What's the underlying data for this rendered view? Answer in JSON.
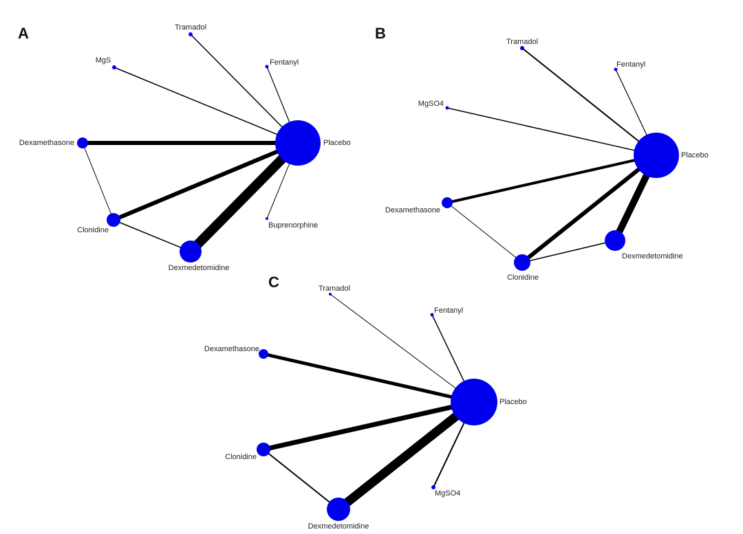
{
  "panels": [
    {
      "label": "A",
      "nodes": [
        "Tramadol",
        "MgS",
        "Fentanyl",
        "Dexamethasone",
        "Placebo",
        "Clonidine",
        "Buprenorphine",
        "Dexmedetomidine"
      ]
    },
    {
      "label": "B",
      "nodes": [
        "Tramadol",
        "Fentanyl",
        "MgSO4",
        "Placebo",
        "Dexamethasone",
        "Clonidine",
        "Dexmedetomidine"
      ]
    },
    {
      "label": "C",
      "nodes": [
        "Tramadol",
        "Fentanyl",
        "Dexamethasone",
        "Placebo",
        "Clonidine",
        "MgSO4",
        "Dexmedetomidine"
      ]
    }
  ]
}
